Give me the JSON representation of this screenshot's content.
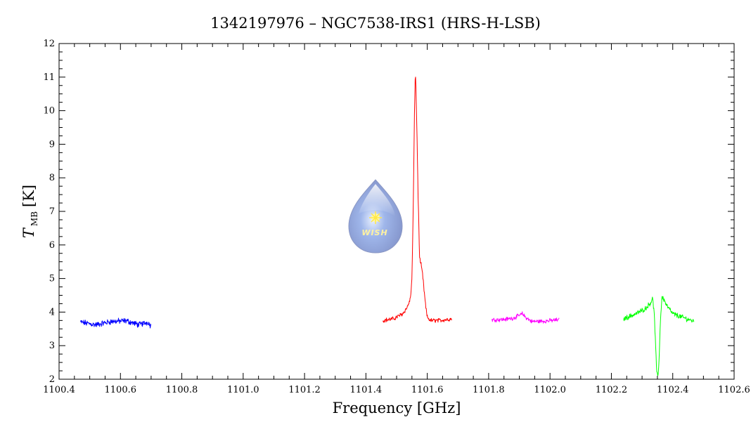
{
  "chart_data": {
    "type": "line",
    "title": "1342197976 – NGC7538-IRS1 (HRS-H-LSB)",
    "xlabel": "Frequency [GHz]",
    "ylabel_main": "T",
    "ylabel_sub": "MB",
    "ylabel_unit": "[K]",
    "xlim": [
      1100.4,
      1102.6
    ],
    "ylim": [
      2,
      12
    ],
    "x_ticks": [
      "1100.4",
      "1100.6",
      "1100.8",
      "1101.0",
      "1101.2",
      "1101.4",
      "1101.6",
      "1101.8",
      "1102.0",
      "1102.2",
      "1102.4",
      "1102.6"
    ],
    "y_ticks": [
      "2",
      "3",
      "4",
      "5",
      "6",
      "7",
      "8",
      "9",
      "10",
      "11",
      "12"
    ],
    "grid": false,
    "legend": "none",
    "logo_text": "WISH",
    "series": [
      {
        "color": "#0000ff",
        "x": [
          1100.47,
          1100.52,
          1100.57,
          1100.62,
          1100.66,
          1100.69,
          1100.7
        ],
        "y": [
          3.7,
          3.62,
          3.72,
          3.74,
          3.62,
          3.7,
          3.58
        ],
        "noise": 0.07
      },
      {
        "color": "#ff0000",
        "x": [
          1101.455,
          1101.49,
          1101.52,
          1101.535,
          1101.545,
          1101.55,
          1101.555,
          1101.558,
          1101.561,
          1101.563,
          1101.566,
          1101.57,
          1101.575,
          1101.58,
          1101.585,
          1101.59,
          1101.595,
          1101.6,
          1101.61,
          1101.64,
          1101.68
        ],
        "y": [
          3.75,
          3.8,
          3.95,
          4.15,
          4.4,
          5.0,
          7.5,
          9.8,
          11.15,
          10.7,
          9.5,
          7.5,
          5.6,
          5.4,
          5.1,
          4.6,
          4.15,
          3.85,
          3.75,
          3.75,
          3.8
        ],
        "noise": 0.05
      },
      {
        "color": "#ff00ff",
        "x": [
          1101.81,
          1101.85,
          1101.88,
          1101.9,
          1101.91,
          1101.92,
          1101.94,
          1101.98,
          1102.03
        ],
        "y": [
          3.77,
          3.78,
          3.82,
          3.9,
          3.95,
          3.85,
          3.72,
          3.73,
          3.77
        ],
        "noise": 0.05
      },
      {
        "color": "#00ff00",
        "x": [
          1102.24,
          1102.28,
          1102.31,
          1102.325,
          1102.335,
          1102.34,
          1102.345,
          1102.348,
          1102.352,
          1102.356,
          1102.36,
          1102.365,
          1102.37,
          1102.38,
          1102.4,
          1102.43,
          1102.47
        ],
        "y": [
          3.8,
          3.95,
          4.1,
          4.25,
          4.4,
          3.9,
          2.8,
          2.15,
          2.1,
          2.7,
          3.8,
          4.45,
          4.4,
          4.2,
          3.95,
          3.85,
          3.72
        ],
        "noise": 0.06
      }
    ]
  }
}
